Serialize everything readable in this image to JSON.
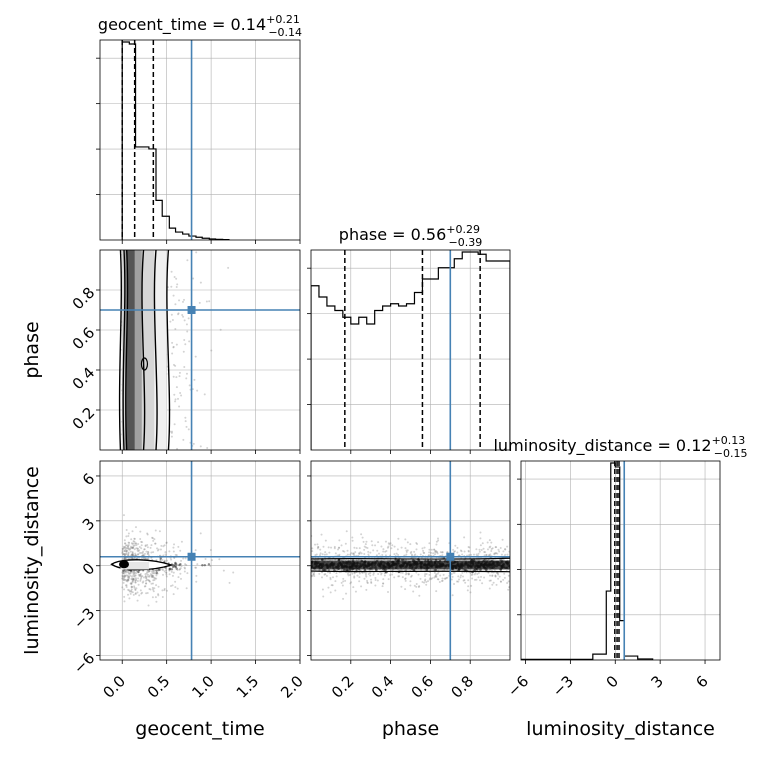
{
  "chart_data": {
    "type": "corner",
    "parameters": [
      "geocent_time",
      "phase",
      "luminosity_distance"
    ],
    "titles": [
      {
        "param": "geocent_time",
        "prefix": "geocent_time = 0.14",
        "plus": "+0.21",
        "minus": "−0.14"
      },
      {
        "param": "phase",
        "prefix": "phase = 0.56",
        "plus": "+0.29",
        "minus": "−0.39"
      },
      {
        "param": "luminosity_distance",
        "prefix": "luminosity_distance = 0.12",
        "plus": "+0.13",
        "minus": "−0.15"
      }
    ],
    "axis_labels": {
      "x": [
        "geocent_time",
        "phase",
        "luminosity_distance"
      ],
      "y": [
        "phase",
        "luminosity_distance"
      ]
    },
    "ranges": {
      "geocent_time": [
        -0.25,
        2.0
      ],
      "phase": [
        0.0,
        1.0
      ],
      "luminosity_distance": [
        -6.3,
        7.0
      ]
    },
    "ticks": {
      "geocent_time": {
        "values": [
          0.0,
          0.5,
          1.0,
          1.5,
          2.0
        ],
        "labels": [
          "0.0",
          "0.5",
          "1.0",
          "1.5",
          "2.0"
        ]
      },
      "phase": {
        "values": [
          0.2,
          0.4,
          0.6,
          0.8
        ],
        "labels": [
          "0.2",
          "0.4",
          "0.6",
          "0.8"
        ]
      },
      "luminosity_distance": {
        "values": [
          -6,
          -3,
          0,
          3,
          6
        ],
        "labels": [
          "−6",
          "−3",
          "0",
          "3",
          "6"
        ]
      }
    },
    "truths": {
      "geocent_time": 0.78,
      "phase": 0.7,
      "luminosity_distance": 0.6
    },
    "quantiles": {
      "geocent_time": [
        0.0,
        0.14,
        0.35
      ],
      "phase": [
        0.17,
        0.56,
        0.85
      ],
      "luminosity_distance": [
        -0.03,
        0.12,
        0.25
      ]
    },
    "histograms": {
      "geocent_time": {
        "edges": [
          0.0,
          0.08,
          0.15,
          0.23,
          0.3,
          0.38,
          0.45,
          0.53,
          0.6,
          0.68,
          0.75,
          0.83,
          0.9,
          0.98,
          1.05,
          1.13,
          1.2
        ],
        "counts": [
          100,
          99,
          47,
          47,
          46,
          20,
          12,
          6,
          4,
          3,
          2,
          1.4,
          0.9,
          0.5,
          0.3,
          0.2
        ]
      },
      "phase": {
        "edges": [
          0.0,
          0.04,
          0.08,
          0.12,
          0.16,
          0.2,
          0.24,
          0.28,
          0.32,
          0.36,
          0.4,
          0.44,
          0.48,
          0.52,
          0.56,
          0.6,
          0.64,
          0.68,
          0.72,
          0.76,
          0.8,
          0.84,
          0.88,
          0.92,
          0.96,
          1.0
        ],
        "counts": [
          73,
          68,
          64,
          62,
          59,
          56,
          59,
          56,
          62,
          64,
          65,
          64,
          65,
          70,
          76,
          76,
          81,
          81,
          85,
          88,
          88,
          87,
          84,
          84,
          84
        ]
      },
      "luminosity_distance": {
        "edges": [
          -6.3,
          -1.5,
          -0.6,
          -0.3,
          0.0,
          0.3,
          0.6,
          1.5,
          2.5
        ],
        "counts": [
          0.3,
          3,
          35,
          100,
          98,
          20,
          2,
          0.5
        ]
      }
    },
    "scatter": [
      {
        "x": "geocent_time",
        "y": "phase",
        "x_spread": [
          0.0,
          1.25
        ],
        "y_spread": [
          0.0,
          1.0
        ]
      },
      {
        "x": "geocent_time",
        "y": "luminosity_distance",
        "x_spread": [
          0.0,
          1.0
        ],
        "y_spread": [
          -4.0,
          4.0
        ]
      },
      {
        "x": "phase",
        "y": "luminosity_distance",
        "x_spread": [
          0.0,
          1.0
        ],
        "y_spread": [
          -2.0,
          2.5
        ]
      }
    ],
    "colors": {
      "truth": "#4682b4",
      "hist": "#000000",
      "scatter": "#808080",
      "grid": "#b0b0b0"
    }
  }
}
